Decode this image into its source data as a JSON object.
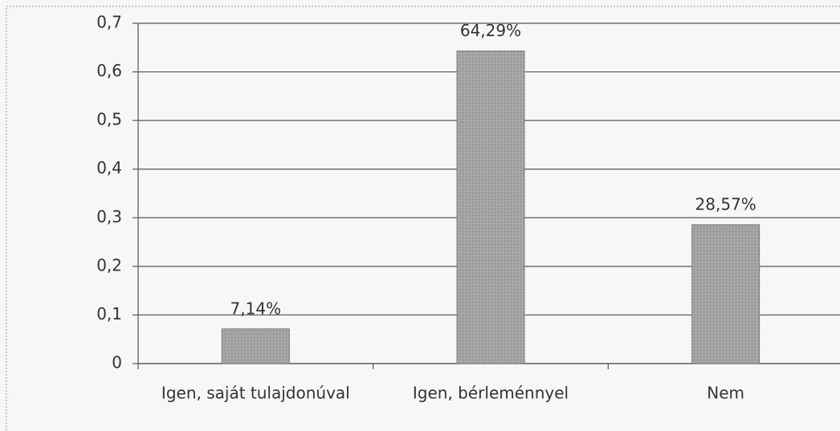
{
  "chart_data": {
    "type": "bar",
    "categories": [
      "Igen, saját tulajdonúval",
      "Igen, bérleménnyel",
      "Nem"
    ],
    "values": [
      0.0714,
      0.6429,
      0.2857
    ],
    "value_labels": [
      "7,14%",
      "64,29%",
      "28,57%"
    ],
    "color": "#a3a3a3",
    "ylim": [
      0,
      0.7
    ],
    "yticks": [
      0,
      {
        "value": 0.1,
        "label": "0,1"
      },
      {
        "value": 0.2,
        "label": "0,2"
      },
      {
        "value": 0.3,
        "label": "0,3"
      },
      {
        "value": 0.4,
        "label": "0,4"
      },
      {
        "value": 0.5,
        "label": "0,5"
      },
      {
        "value": 0.6,
        "label": "0,6"
      },
      {
        "value": 0.7,
        "label": "0,7"
      }
    ],
    "grid": true
  }
}
